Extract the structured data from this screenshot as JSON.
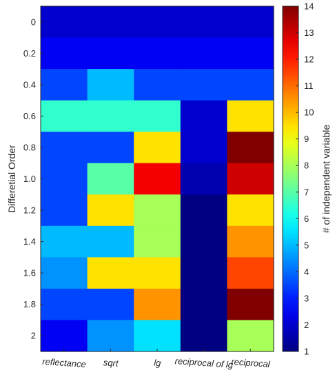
{
  "chart_data": {
    "type": "heatmap",
    "title": "",
    "xlabel": "",
    "ylabel": "Differetial Order",
    "x_categories": [
      "reflectance",
      "sqrt",
      "lg",
      "reciprocal of lg",
      "reciprocal"
    ],
    "y_categories": [
      "0",
      "0.2",
      "0.4",
      "0.6",
      "0.8",
      "1.0",
      "1.2",
      "1.4",
      "1.6",
      "1.8",
      "2"
    ],
    "values": [
      [
        2,
        2,
        2,
        2,
        2
      ],
      [
        2.5,
        2.5,
        2.5,
        2.5,
        2.5
      ],
      [
        3.5,
        5,
        3.5,
        3.5,
        3.5
      ],
      [
        6.5,
        6.5,
        6.5,
        2,
        9.5
      ],
      [
        3.5,
        3.5,
        9.5,
        2,
        14
      ],
      [
        3.5,
        7,
        12.5,
        1.6,
        13
      ],
      [
        3.5,
        9.5,
        8,
        1,
        9.5
      ],
      [
        5,
        5,
        8,
        1,
        10.5
      ],
      [
        4.5,
        9.5,
        9.5,
        1,
        11.5
      ],
      [
        3.5,
        3.5,
        10.5,
        1,
        14
      ],
      [
        2.5,
        4.5,
        5.5,
        1,
        8
      ]
    ],
    "colorbar": {
      "label": "# of independent variable",
      "min": 1,
      "max": 14,
      "ticks": [
        "1",
        "2",
        "3",
        "4",
        "5",
        "6",
        "7",
        "8",
        "9",
        "10",
        "11",
        "12",
        "13",
        "14"
      ],
      "colormap": "jet"
    }
  }
}
